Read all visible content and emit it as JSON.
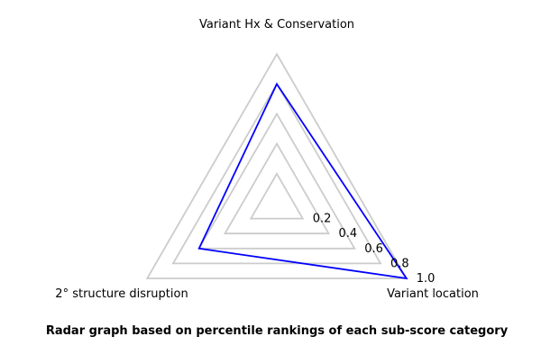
{
  "chart_data": {
    "type": "radar",
    "axes": [
      "Variant Hx & Conservation",
      "Variant location",
      "2° structure disruption"
    ],
    "series": [
      {
        "values": [
          0.8,
          1.0,
          0.6
        ]
      }
    ],
    "ticks": [
      0.2,
      0.4,
      0.6,
      0.8,
      1.0
    ],
    "tick_labels": [
      "0.2",
      "0.4",
      "0.6",
      "0.8",
      "1.0"
    ],
    "rlim": [
      0,
      1.0
    ],
    "grid": true,
    "caption": "Radar graph based on percentile rankings of each sub-score category",
    "colors": {
      "series": "#0000ff",
      "grid": "#cccccc"
    }
  }
}
